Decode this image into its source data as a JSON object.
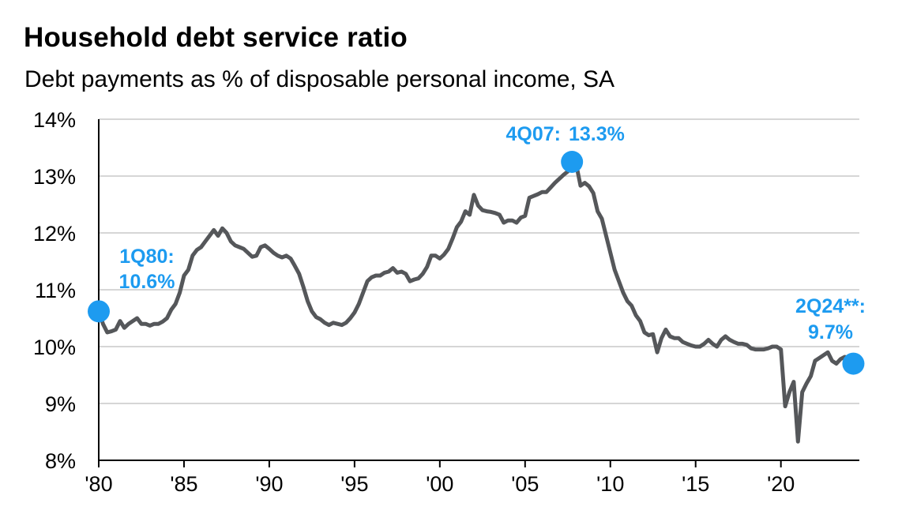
{
  "chart_data": {
    "type": "line",
    "title": "Household debt service ratio",
    "subtitle": "Debt payments as % of disposable personal income, SA",
    "xlabel": "",
    "ylabel": "",
    "xlim": [
      1980,
      2024.6
    ],
    "ylim": [
      8,
      14
    ],
    "y_ticks": [
      8,
      9,
      10,
      11,
      12,
      13,
      14
    ],
    "y_tick_labels": [
      "8%",
      "9%",
      "10%",
      "11%",
      "12%",
      "13%",
      "14%"
    ],
    "x_ticks": [
      1980,
      1985,
      1990,
      1995,
      2000,
      2005,
      2010,
      2015,
      2020
    ],
    "x_tick_labels": [
      "'80",
      "'85",
      "'90",
      "'95",
      "'00",
      "'05",
      "'10",
      "'15",
      "'20"
    ],
    "grid": "horizontal",
    "colors": {
      "line": "#55575a",
      "highlight": "#1d9bf0",
      "grid": "#c8c8c8",
      "axis": "#000000"
    },
    "series": [
      {
        "points": [
          [
            1980.0,
            10.62
          ],
          [
            1980.25,
            10.4
          ],
          [
            1980.5,
            10.25
          ],
          [
            1980.75,
            10.27
          ],
          [
            1981.0,
            10.3
          ],
          [
            1981.25,
            10.45
          ],
          [
            1981.5,
            10.33
          ],
          [
            1981.75,
            10.4
          ],
          [
            1982.0,
            10.45
          ],
          [
            1982.25,
            10.5
          ],
          [
            1982.5,
            10.4
          ],
          [
            1982.75,
            10.4
          ],
          [
            1983.0,
            10.37
          ],
          [
            1983.25,
            10.4
          ],
          [
            1983.5,
            10.4
          ],
          [
            1983.75,
            10.44
          ],
          [
            1984.0,
            10.5
          ],
          [
            1984.25,
            10.65
          ],
          [
            1984.5,
            10.75
          ],
          [
            1984.75,
            10.95
          ],
          [
            1985.0,
            11.25
          ],
          [
            1985.25,
            11.35
          ],
          [
            1985.5,
            11.6
          ],
          [
            1985.75,
            11.7
          ],
          [
            1986.0,
            11.75
          ],
          [
            1986.25,
            11.85
          ],
          [
            1986.5,
            11.95
          ],
          [
            1986.75,
            12.05
          ],
          [
            1987.0,
            11.95
          ],
          [
            1987.25,
            12.08
          ],
          [
            1987.5,
            12.0
          ],
          [
            1987.75,
            11.85
          ],
          [
            1988.0,
            11.78
          ],
          [
            1988.25,
            11.75
          ],
          [
            1988.5,
            11.72
          ],
          [
            1988.75,
            11.65
          ],
          [
            1989.0,
            11.58
          ],
          [
            1989.25,
            11.6
          ],
          [
            1989.5,
            11.75
          ],
          [
            1989.75,
            11.78
          ],
          [
            1990.0,
            11.72
          ],
          [
            1990.25,
            11.65
          ],
          [
            1990.5,
            11.6
          ],
          [
            1990.75,
            11.57
          ],
          [
            1991.0,
            11.6
          ],
          [
            1991.25,
            11.55
          ],
          [
            1991.5,
            11.42
          ],
          [
            1991.75,
            11.28
          ],
          [
            1992.0,
            11.05
          ],
          [
            1992.25,
            10.8
          ],
          [
            1992.5,
            10.62
          ],
          [
            1992.75,
            10.52
          ],
          [
            1993.0,
            10.48
          ],
          [
            1993.25,
            10.42
          ],
          [
            1993.5,
            10.38
          ],
          [
            1993.75,
            10.42
          ],
          [
            1994.0,
            10.4
          ],
          [
            1994.25,
            10.38
          ],
          [
            1994.5,
            10.42
          ],
          [
            1994.75,
            10.5
          ],
          [
            1995.0,
            10.6
          ],
          [
            1995.25,
            10.75
          ],
          [
            1995.5,
            10.95
          ],
          [
            1995.75,
            11.15
          ],
          [
            1996.0,
            11.22
          ],
          [
            1996.25,
            11.25
          ],
          [
            1996.5,
            11.25
          ],
          [
            1996.75,
            11.3
          ],
          [
            1997.0,
            11.32
          ],
          [
            1997.25,
            11.38
          ],
          [
            1997.5,
            11.3
          ],
          [
            1997.75,
            11.32
          ],
          [
            1998.0,
            11.28
          ],
          [
            1998.25,
            11.15
          ],
          [
            1998.5,
            11.18
          ],
          [
            1998.75,
            11.2
          ],
          [
            1999.0,
            11.28
          ],
          [
            1999.25,
            11.4
          ],
          [
            1999.5,
            11.6
          ],
          [
            1999.75,
            11.6
          ],
          [
            2000.0,
            11.55
          ],
          [
            2000.25,
            11.62
          ],
          [
            2000.5,
            11.72
          ],
          [
            2000.75,
            11.9
          ],
          [
            2001.0,
            12.1
          ],
          [
            2001.25,
            12.2
          ],
          [
            2001.5,
            12.38
          ],
          [
            2001.75,
            12.32
          ],
          [
            2002.0,
            12.67
          ],
          [
            2002.25,
            12.48
          ],
          [
            2002.5,
            12.4
          ],
          [
            2002.75,
            12.38
          ],
          [
            2003.0,
            12.37
          ],
          [
            2003.25,
            12.35
          ],
          [
            2003.5,
            12.32
          ],
          [
            2003.75,
            12.18
          ],
          [
            2004.0,
            12.22
          ],
          [
            2004.25,
            12.22
          ],
          [
            2004.5,
            12.18
          ],
          [
            2004.75,
            12.27
          ],
          [
            2005.0,
            12.3
          ],
          [
            2005.25,
            12.62
          ],
          [
            2005.5,
            12.65
          ],
          [
            2005.75,
            12.68
          ],
          [
            2006.0,
            12.72
          ],
          [
            2006.25,
            12.72
          ],
          [
            2006.5,
            12.8
          ],
          [
            2006.75,
            12.88
          ],
          [
            2007.0,
            12.95
          ],
          [
            2007.25,
            13.02
          ],
          [
            2007.5,
            13.08
          ],
          [
            2007.75,
            13.25
          ],
          [
            2008.0,
            13.2
          ],
          [
            2008.25,
            12.83
          ],
          [
            2008.5,
            12.88
          ],
          [
            2008.75,
            12.82
          ],
          [
            2009.0,
            12.7
          ],
          [
            2009.25,
            12.38
          ],
          [
            2009.5,
            12.25
          ],
          [
            2009.75,
            11.95
          ],
          [
            2010.0,
            11.65
          ],
          [
            2010.25,
            11.35
          ],
          [
            2010.5,
            11.15
          ],
          [
            2010.75,
            10.95
          ],
          [
            2011.0,
            10.8
          ],
          [
            2011.25,
            10.72
          ],
          [
            2011.5,
            10.55
          ],
          [
            2011.75,
            10.45
          ],
          [
            2012.0,
            10.25
          ],
          [
            2012.25,
            10.2
          ],
          [
            2012.5,
            10.22
          ],
          [
            2012.75,
            9.9
          ],
          [
            2013.0,
            10.15
          ],
          [
            2013.25,
            10.3
          ],
          [
            2013.5,
            10.18
          ],
          [
            2013.75,
            10.15
          ],
          [
            2014.0,
            10.15
          ],
          [
            2014.25,
            10.08
          ],
          [
            2014.5,
            10.05
          ],
          [
            2014.75,
            10.02
          ],
          [
            2015.0,
            10.0
          ],
          [
            2015.25,
            10.0
          ],
          [
            2015.5,
            10.05
          ],
          [
            2015.75,
            10.12
          ],
          [
            2016.0,
            10.05
          ],
          [
            2016.25,
            10.0
          ],
          [
            2016.5,
            10.12
          ],
          [
            2016.75,
            10.18
          ],
          [
            2017.0,
            10.12
          ],
          [
            2017.25,
            10.08
          ],
          [
            2017.5,
            10.05
          ],
          [
            2017.75,
            10.05
          ],
          [
            2018.0,
            10.03
          ],
          [
            2018.25,
            9.97
          ],
          [
            2018.5,
            9.95
          ],
          [
            2018.75,
            9.95
          ],
          [
            2019.0,
            9.95
          ],
          [
            2019.25,
            9.97
          ],
          [
            2019.5,
            10.0
          ],
          [
            2019.75,
            10.0
          ],
          [
            2020.0,
            9.95
          ],
          [
            2020.25,
            8.95
          ],
          [
            2020.5,
            9.2
          ],
          [
            2020.75,
            9.38
          ],
          [
            2021.0,
            8.33
          ],
          [
            2021.25,
            9.2
          ],
          [
            2021.5,
            9.35
          ],
          [
            2021.75,
            9.48
          ],
          [
            2022.0,
            9.75
          ],
          [
            2022.25,
            9.8
          ],
          [
            2022.5,
            9.85
          ],
          [
            2022.75,
            9.9
          ],
          [
            2023.0,
            9.75
          ],
          [
            2023.25,
            9.7
          ],
          [
            2023.5,
            9.78
          ],
          [
            2023.75,
            9.82
          ],
          [
            2024.0,
            9.8
          ],
          [
            2024.25,
            9.7
          ]
        ]
      }
    ],
    "annotations": [
      {
        "label": "1Q80:",
        "value_label": "10.6%",
        "x": 1980.0,
        "y": 10.62
      },
      {
        "label": "4Q07:",
        "value_label": "13.3%",
        "x": 2007.75,
        "y": 13.25
      },
      {
        "label": "2Q24**:",
        "value_label": "9.7%",
        "x": 2024.25,
        "y": 9.7
      }
    ]
  }
}
